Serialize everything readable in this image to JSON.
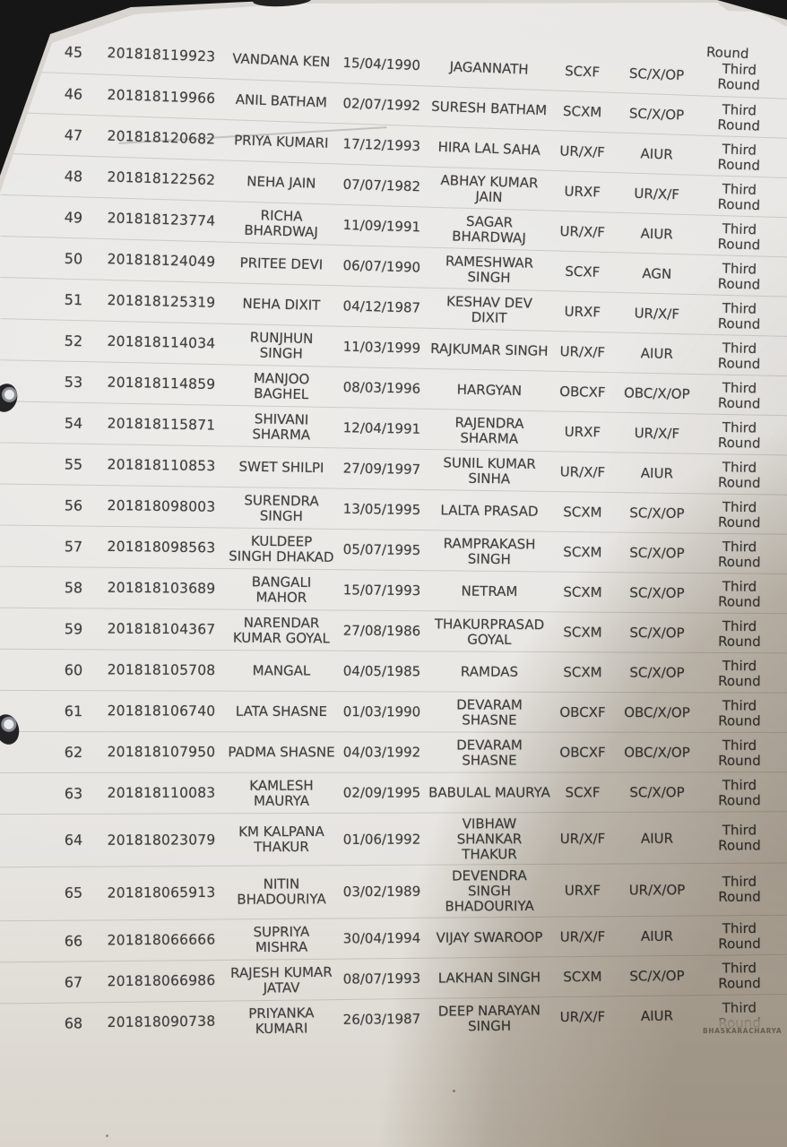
{
  "photo": {
    "top_partial_round": "Round",
    "watermark": "BHASKARACHARYA",
    "colors": {
      "background": "#161616",
      "paper": "#e8e6e2",
      "ink": "#41403e",
      "shadow": "#b9ab94"
    }
  },
  "table": {
    "rows": [
      {
        "sno": "45",
        "app_no": "201818119923",
        "name": "VANDANA KEN",
        "dob": "15/04/1990",
        "father": "JAGANNATH",
        "code": "SCXF",
        "category": "SC/X/OP",
        "round": "Third Round"
      },
      {
        "sno": "46",
        "app_no": "201818119966",
        "name": "ANIL BATHAM",
        "dob": "02/07/1992",
        "father": "SURESH BATHAM",
        "code": "SCXM",
        "category": "SC/X/OP",
        "round": "Third Round"
      },
      {
        "sno": "47",
        "app_no": "201818120682",
        "name": "PRIYA KUMARI",
        "dob": "17/12/1993",
        "father": "HIRA LAL SAHA",
        "code": "UR/X/F",
        "category": "AIUR",
        "round": "Third Round"
      },
      {
        "sno": "48",
        "app_no": "201818122562",
        "name": "NEHA JAIN",
        "dob": "07/07/1982",
        "father": "ABHAY KUMAR JAIN",
        "code": "URXF",
        "category": "UR/X/F",
        "round": "Third Round"
      },
      {
        "sno": "49",
        "app_no": "201818123774",
        "name": "RICHA BHARDWAJ",
        "dob": "11/09/1991",
        "father": "SAGAR BHARDWAJ",
        "code": "UR/X/F",
        "category": "AIUR",
        "round": "Third Round"
      },
      {
        "sno": "50",
        "app_no": "201818124049",
        "name": "PRITEE DEVI",
        "dob": "06/07/1990",
        "father": "RAMESHWAR SINGH",
        "code": "SCXF",
        "category": "AGN",
        "round": "Third Round"
      },
      {
        "sno": "51",
        "app_no": "201818125319",
        "name": "NEHA DIXIT",
        "dob": "04/12/1987",
        "father": "KESHAV DEV DIXIT",
        "code": "URXF",
        "category": "UR/X/F",
        "round": "Third Round"
      },
      {
        "sno": "52",
        "app_no": "201818114034",
        "name": "RUNJHUN SINGH",
        "dob": "11/03/1999",
        "father": "RAJKUMAR SINGH",
        "code": "UR/X/F",
        "category": "AIUR",
        "round": "Third Round"
      },
      {
        "sno": "53",
        "app_no": "201818114859",
        "name": "MANJOO BAGHEL",
        "dob": "08/03/1996",
        "father": "HARGYAN",
        "code": "OBCXF",
        "category": "OBC/X/OP",
        "round": "Third Round"
      },
      {
        "sno": "54",
        "app_no": "201818115871",
        "name": "SHIVANI SHARMA",
        "dob": "12/04/1991",
        "father": "RAJENDRA SHARMA",
        "code": "URXF",
        "category": "UR/X/F",
        "round": "Third Round"
      },
      {
        "sno": "55",
        "app_no": "201818110853",
        "name": "SWET SHILPI",
        "dob": "27/09/1997",
        "father": "SUNIL KUMAR SINHA",
        "code": "UR/X/F",
        "category": "AIUR",
        "round": "Third Round"
      },
      {
        "sno": "56",
        "app_no": "201818098003",
        "name": "SURENDRA SINGH",
        "dob": "13/05/1995",
        "father": "LALTA PRASAD",
        "code": "SCXM",
        "category": "SC/X/OP",
        "round": "Third Round"
      },
      {
        "sno": "57",
        "app_no": "201818098563",
        "name": "KULDEEP SINGH DHAKAD",
        "dob": "05/07/1995",
        "father": "RAMPRAKASH SINGH",
        "code": "SCXM",
        "category": "SC/X/OP",
        "round": "Third Round"
      },
      {
        "sno": "58",
        "app_no": "201818103689",
        "name": "BANGALI MAHOR",
        "dob": "15/07/1993",
        "father": "NETRAM",
        "code": "SCXM",
        "category": "SC/X/OP",
        "round": "Third Round"
      },
      {
        "sno": "59",
        "app_no": "201818104367",
        "name": "NARENDAR KUMAR GOYAL",
        "dob": "27/08/1986",
        "father": "THAKURPRASAD GOYAL",
        "code": "SCXM",
        "category": "SC/X/OP",
        "round": "Third Round"
      },
      {
        "sno": "60",
        "app_no": "201818105708",
        "name": "MANGAL",
        "dob": "04/05/1985",
        "father": "RAMDAS",
        "code": "SCXM",
        "category": "SC/X/OP",
        "round": "Third Round"
      },
      {
        "sno": "61",
        "app_no": "201818106740",
        "name": "LATA SHASNE",
        "dob": "01/03/1990",
        "father": "DEVARAM SHASNE",
        "code": "OBCXF",
        "category": "OBC/X/OP",
        "round": "Third Round"
      },
      {
        "sno": "62",
        "app_no": "201818107950",
        "name": "PADMA SHASNE",
        "dob": "04/03/1992",
        "father": "DEVARAM SHASNE",
        "code": "OBCXF",
        "category": "OBC/X/OP",
        "round": "Third Round"
      },
      {
        "sno": "63",
        "app_no": "201818110083",
        "name": "KAMLESH MAURYA",
        "dob": "02/09/1995",
        "father": "BABULAL MAURYA",
        "code": "SCXF",
        "category": "SC/X/OP",
        "round": "Third Round"
      },
      {
        "sno": "64",
        "app_no": "201818023079",
        "name": "KM KALPANA THAKUR",
        "dob": "01/06/1992",
        "father": "VIBHAW SHANKAR THAKUR",
        "code": "UR/X/F",
        "category": "AIUR",
        "round": "Third Round"
      },
      {
        "sno": "65",
        "app_no": "201818065913",
        "name": "NITIN BHADOURIYA",
        "dob": "03/02/1989",
        "father": "DEVENDRA SINGH BHADOURIYA",
        "code": "URXF",
        "category": "UR/X/OP",
        "round": "Third Round"
      },
      {
        "sno": "66",
        "app_no": "201818066666",
        "name": "SUPRIYA MISHRA",
        "dob": "30/04/1994",
        "father": "VIJAY SWAROOP",
        "code": "UR/X/F",
        "category": "AIUR",
        "round": "Third Round"
      },
      {
        "sno": "67",
        "app_no": "201818066986",
        "name": "RAJESH KUMAR JATAV",
        "dob": "08/07/1993",
        "father": "LAKHAN SINGH",
        "code": "SCXM",
        "category": "SC/X/OP",
        "round": "Third Round"
      },
      {
        "sno": "68",
        "app_no": "201818090738",
        "name": "PRIYANKA KUMARI",
        "dob": "26/03/1987",
        "father": "DEEP NARAYAN SINGH",
        "code": "UR/X/F",
        "category": "AIUR",
        "round": "Third Round"
      }
    ]
  }
}
